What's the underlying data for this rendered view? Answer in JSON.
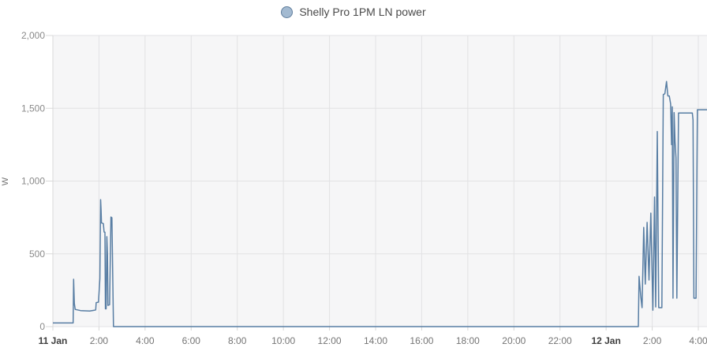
{
  "legend": {
    "label": "Shelly Pro 1PM LN power"
  },
  "colors": {
    "panel_bg": "#ffffff",
    "plot_bg": "#f6f6f7",
    "grid": "#e2e2e4",
    "axis": "#d8d8d8",
    "line": "#577da3",
    "legend_dot_fill": "#a3bad1",
    "legend_dot_border": "#5f7d9c",
    "title_text": "#4a4a4a",
    "y_tick_label": "#8a8a8a",
    "x_tick_label": "#757575",
    "x_date_label": "#3f3f3f",
    "axis_unit_label": "#757575"
  },
  "chart_data": {
    "type": "line",
    "title": "Shelly Pro 1PM LN power",
    "ylabel": "W",
    "xlabel": "",
    "ylim": [
      0,
      2000
    ],
    "x_range_hours": [
      0,
      28.38
    ],
    "x_epoch_label": "hours since 11 Jan 00:00",
    "grid": true,
    "legend_position": "top-center",
    "y_ticks": [
      {
        "value": 0,
        "label": "0"
      },
      {
        "value": 500,
        "label": "500"
      },
      {
        "value": 1000,
        "label": "1,000"
      },
      {
        "value": 1500,
        "label": "1,500"
      },
      {
        "value": 2000,
        "label": "2,000"
      }
    ],
    "x_ticks": [
      {
        "hour": 0,
        "label": "11 Jan",
        "bold": true
      },
      {
        "hour": 2,
        "label": "2:00",
        "bold": false
      },
      {
        "hour": 4,
        "label": "4:00",
        "bold": false
      },
      {
        "hour": 6,
        "label": "6:00",
        "bold": false
      },
      {
        "hour": 8,
        "label": "8:00",
        "bold": false
      },
      {
        "hour": 10,
        "label": "10:00",
        "bold": false
      },
      {
        "hour": 12,
        "label": "12:00",
        "bold": false
      },
      {
        "hour": 14,
        "label": "14:00",
        "bold": false
      },
      {
        "hour": 16,
        "label": "16:00",
        "bold": false
      },
      {
        "hour": 18,
        "label": "18:00",
        "bold": false
      },
      {
        "hour": 20,
        "label": "20:00",
        "bold": false
      },
      {
        "hour": 22,
        "label": "22:00",
        "bold": false
      },
      {
        "hour": 24,
        "label": "12 Jan",
        "bold": true
      },
      {
        "hour": 26,
        "label": "2:00",
        "bold": false
      },
      {
        "hour": 28,
        "label": "4:00",
        "bold": false
      }
    ],
    "series": [
      {
        "name": "Shelly Pro 1PM LN power",
        "unit": "W",
        "color": "#577da3",
        "points": [
          [
            0.0,
            25
          ],
          [
            0.88,
            25
          ],
          [
            0.9,
            325
          ],
          [
            0.93,
            160
          ],
          [
            0.97,
            118
          ],
          [
            1.2,
            110
          ],
          [
            1.6,
            107
          ],
          [
            1.8,
            112
          ],
          [
            1.86,
            115
          ],
          [
            1.88,
            165
          ],
          [
            1.98,
            168
          ],
          [
            2.04,
            330
          ],
          [
            2.07,
            872
          ],
          [
            2.09,
            800
          ],
          [
            2.11,
            712
          ],
          [
            2.19,
            708
          ],
          [
            2.22,
            650
          ],
          [
            2.26,
            648
          ],
          [
            2.28,
            122
          ],
          [
            2.31,
            122
          ],
          [
            2.34,
            618
          ],
          [
            2.37,
            490
          ],
          [
            2.39,
            146
          ],
          [
            2.46,
            150
          ],
          [
            2.52,
            753
          ],
          [
            2.56,
            748
          ],
          [
            2.6,
            300
          ],
          [
            2.63,
            0
          ],
          [
            25.4,
            0
          ],
          [
            25.43,
            345
          ],
          [
            25.5,
            210
          ],
          [
            25.56,
            130
          ],
          [
            25.63,
            682
          ],
          [
            25.7,
            292
          ],
          [
            25.78,
            716
          ],
          [
            25.86,
            320
          ],
          [
            25.94,
            780
          ],
          [
            26.03,
            113
          ],
          [
            26.1,
            890
          ],
          [
            26.15,
            135
          ],
          [
            26.22,
            1340
          ],
          [
            26.28,
            130
          ],
          [
            26.42,
            130
          ],
          [
            26.48,
            1594
          ],
          [
            26.55,
            1600
          ],
          [
            26.62,
            1684
          ],
          [
            26.68,
            1585
          ],
          [
            26.74,
            1585
          ],
          [
            26.8,
            1530
          ],
          [
            26.84,
            1250
          ],
          [
            26.87,
            1510
          ],
          [
            26.9,
            195
          ],
          [
            26.95,
            1470
          ],
          [
            26.99,
            1270
          ],
          [
            27.03,
            1160
          ],
          [
            27.07,
            195
          ],
          [
            27.14,
            1467
          ],
          [
            27.74,
            1467
          ],
          [
            27.77,
            1420
          ],
          [
            27.81,
            195
          ],
          [
            27.9,
            195
          ],
          [
            27.96,
            1490
          ],
          [
            28.38,
            1490
          ]
        ]
      }
    ]
  }
}
